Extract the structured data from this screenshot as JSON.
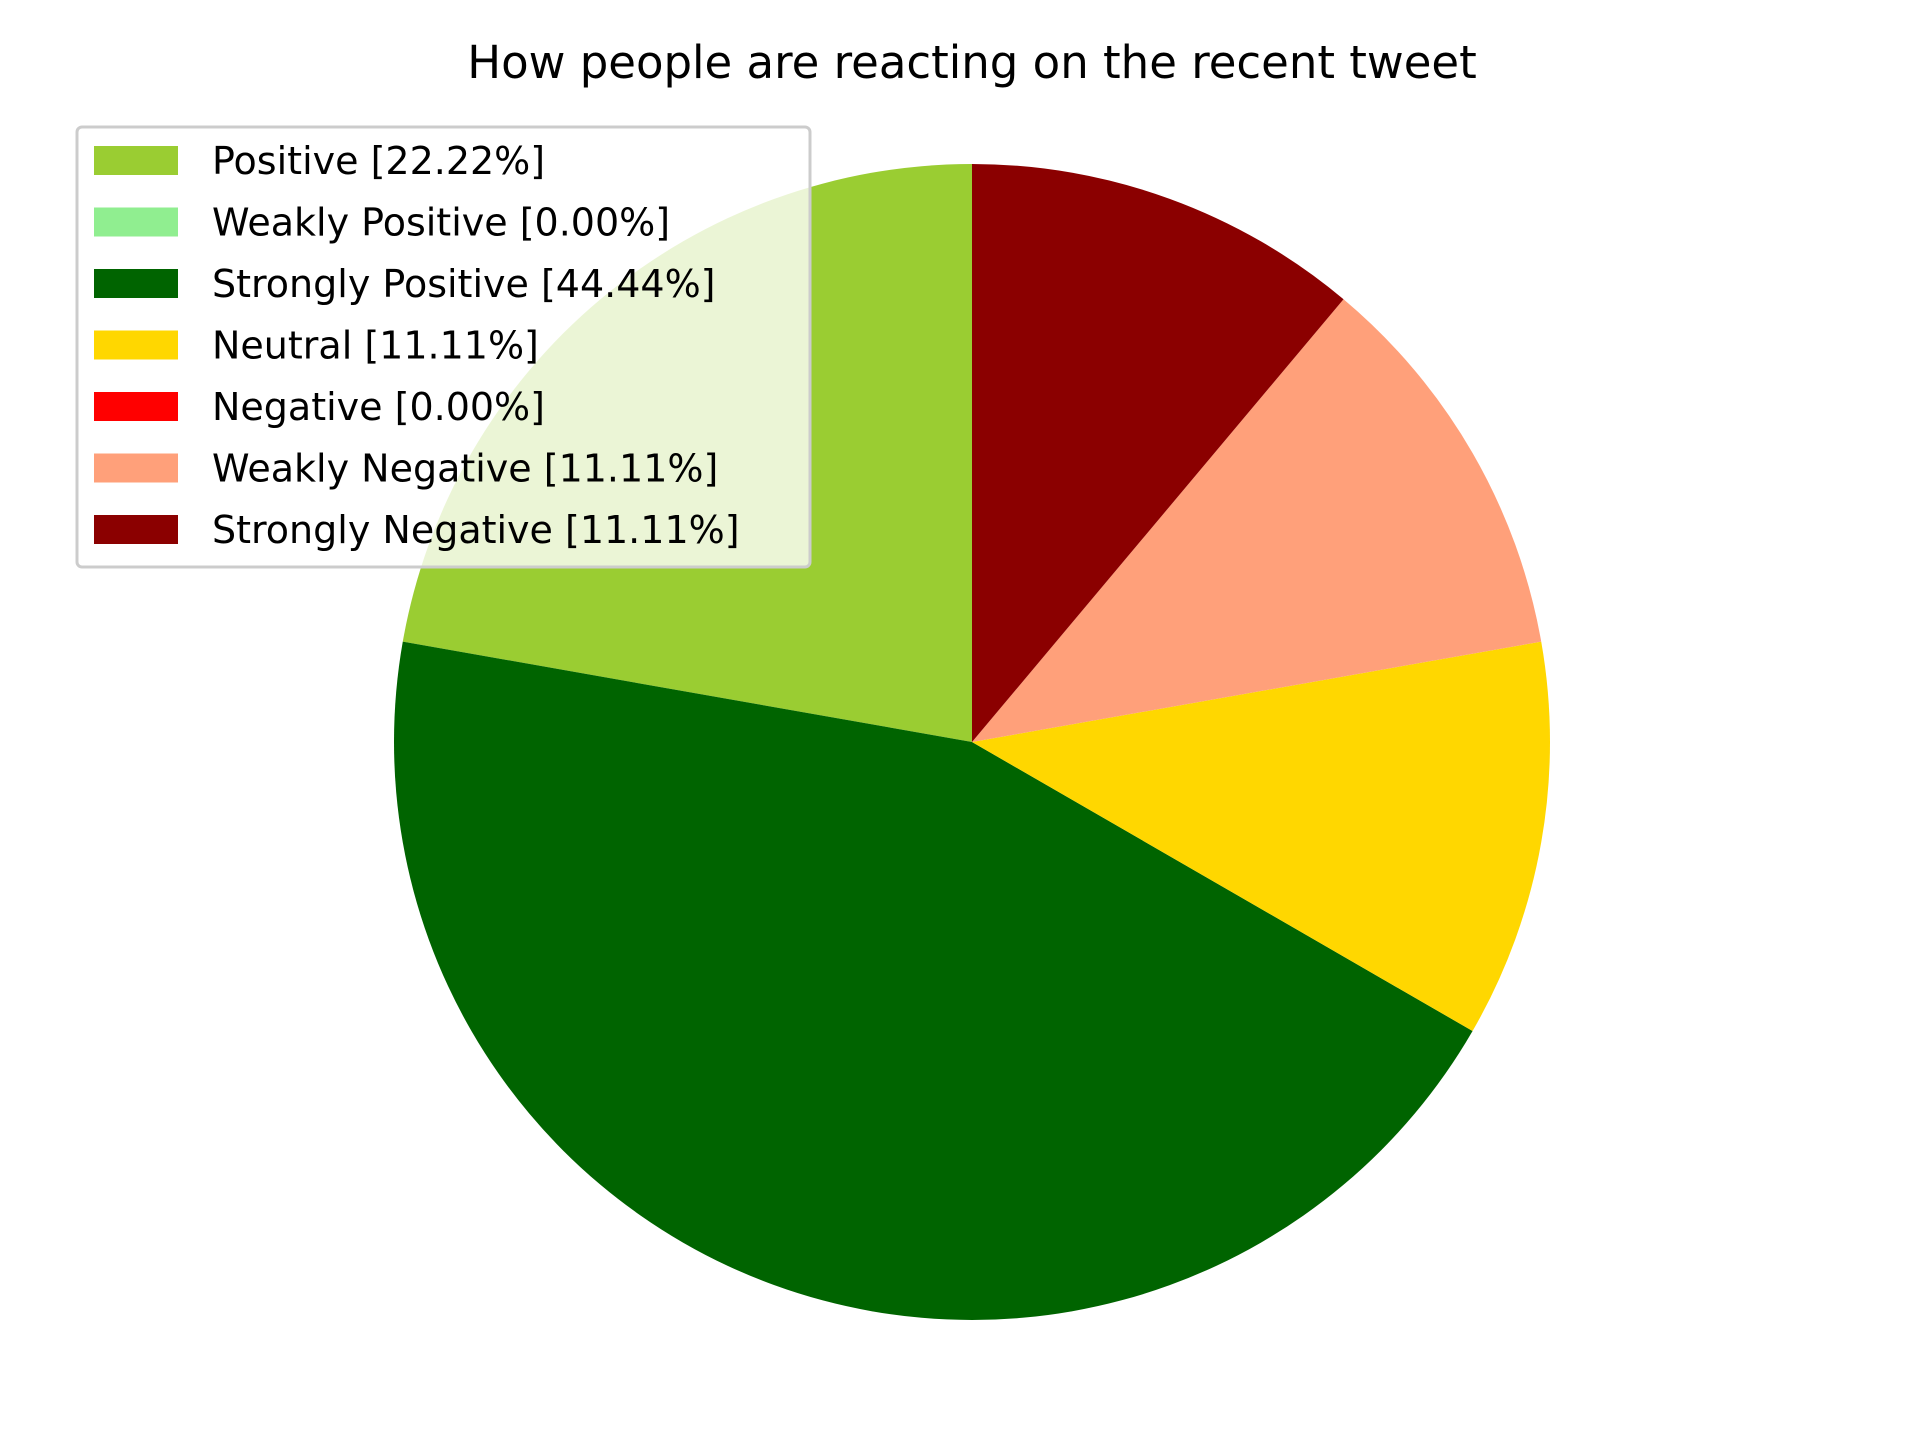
{
  "chart_data": {
    "type": "pie",
    "title": "How people are reacting on the recent tweet",
    "start_angle_deg": 90,
    "direction": "counterclockwise",
    "legend_position": "top-left",
    "slices": [
      {
        "label": "Positive [22.22%]",
        "value": 22.22,
        "color": "#9acd32"
      },
      {
        "label": "Weakly Positive [0.00%]",
        "value": 0.0,
        "color": "#90ee90"
      },
      {
        "label": "Strongly Positive [44.44%]",
        "value": 44.44,
        "color": "#006400"
      },
      {
        "label": "Neutral [11.11%]",
        "value": 11.11,
        "color": "#ffd700"
      },
      {
        "label": "Negative [0.00%]",
        "value": 0.0,
        "color": "#ff0000"
      },
      {
        "label": "Weakly Negative [11.11%]",
        "value": 11.11,
        "color": "#ffa07a"
      },
      {
        "label": "Strongly Negative [11.11%]",
        "value": 11.11,
        "color": "#8b0000"
      }
    ]
  }
}
